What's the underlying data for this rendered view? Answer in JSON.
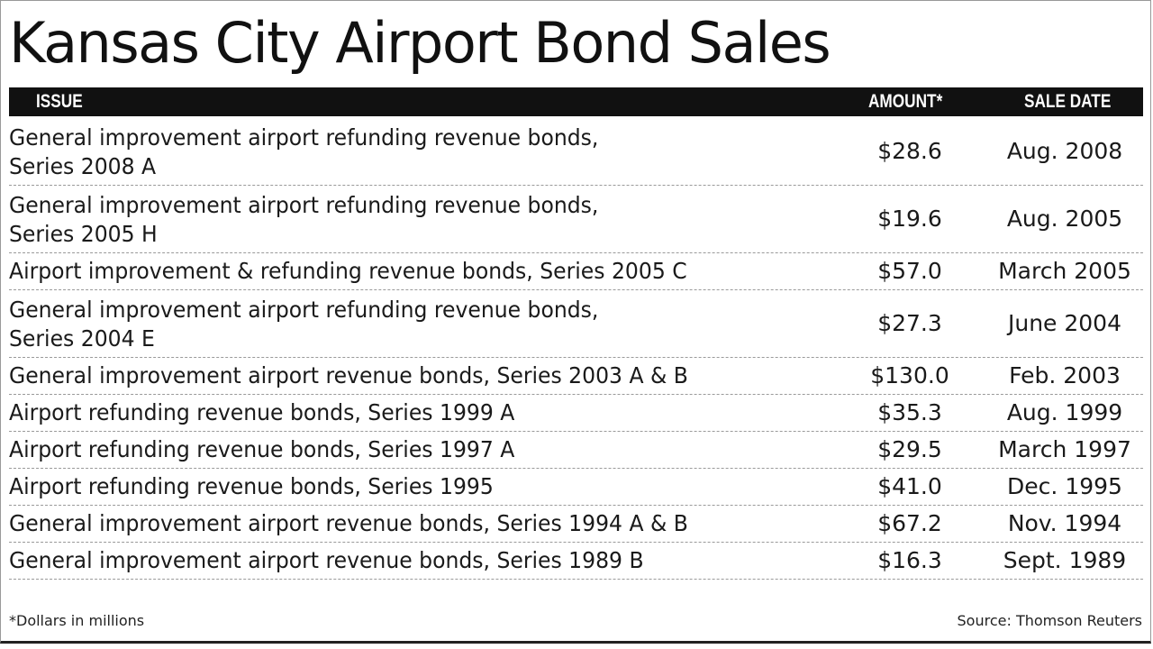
{
  "chart_data": {
    "type": "table",
    "title": "Kansas City Airport Bond Sales",
    "columns": [
      "ISSUE",
      "AMOUNT*",
      "SALE DATE"
    ],
    "rows": [
      {
        "issue": [
          "General improvement airport refunding revenue bonds,",
          "Series 2008 A"
        ],
        "amount": "$28.6",
        "date": "Aug. 2008"
      },
      {
        "issue": [
          "General improvement airport refunding revenue bonds,",
          "Series 2005 H"
        ],
        "amount": "$19.6",
        "date": "Aug. 2005"
      },
      {
        "issue": [
          "Airport improvement & refunding revenue bonds, Series 2005 C"
        ],
        "amount": "$57.0",
        "date": "March 2005"
      },
      {
        "issue": [
          "General improvement airport refunding revenue bonds,",
          "Series 2004 E"
        ],
        "amount": "$27.3",
        "date": "June 2004"
      },
      {
        "issue": [
          "General improvement airport revenue bonds, Series 2003 A & B"
        ],
        "amount": "$130.0",
        "date": "Feb. 2003"
      },
      {
        "issue": [
          "Airport refunding revenue bonds, Series 1999 A"
        ],
        "amount": "$35.3",
        "date": "Aug. 1999"
      },
      {
        "issue": [
          "Airport refunding revenue bonds, Series 1997 A"
        ],
        "amount": "$29.5",
        "date": "March 1997"
      },
      {
        "issue": [
          "Airport refunding revenue bonds, Series 1995"
        ],
        "amount": "$41.0",
        "date": "Dec. 1995"
      },
      {
        "issue": [
          "General improvement airport revenue bonds, Series 1994 A & B"
        ],
        "amount": "$67.2",
        "date": "Nov. 1994"
      },
      {
        "issue": [
          "General improvement airport revenue bonds, Series 1989 B"
        ],
        "amount": "$16.3",
        "date": "Sept. 1989"
      }
    ],
    "footnote": "*Dollars in millions",
    "source": "Source: Thomson Reuters"
  },
  "colors": {
    "header_bg": "#111111",
    "header_text": "#ffffff",
    "text": "#1a1a1a"
  }
}
